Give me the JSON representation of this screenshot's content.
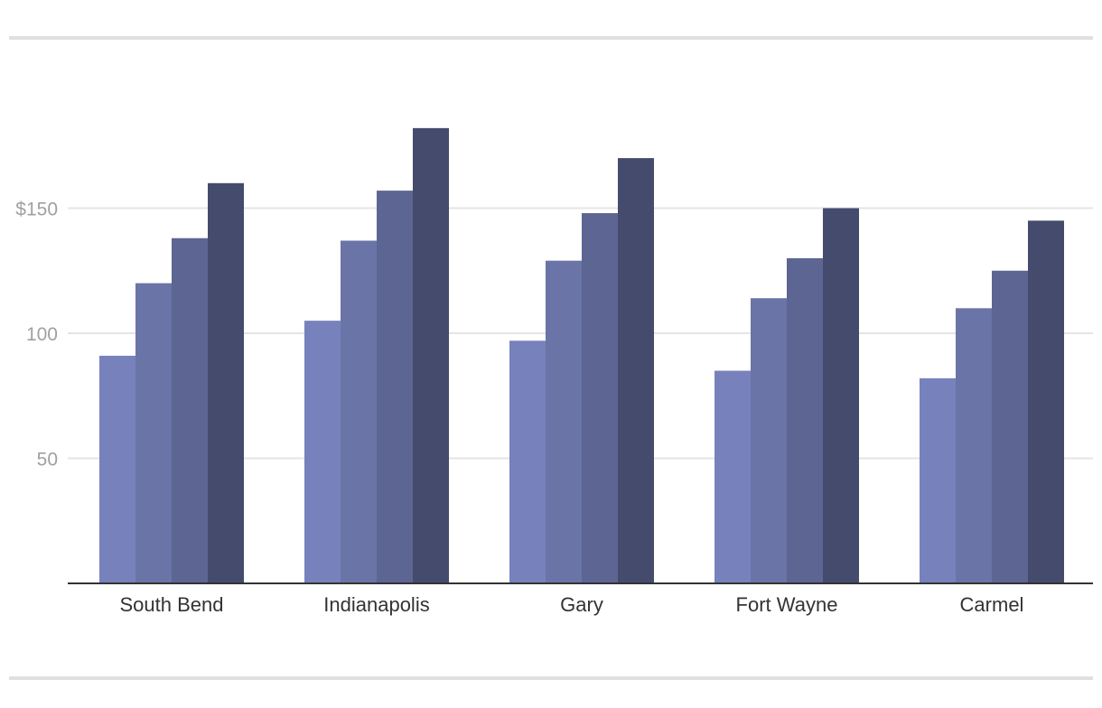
{
  "chart_data": {
    "type": "bar",
    "categories": [
      "South Bend",
      "Indianapolis",
      "Gary",
      "Fort Wayne",
      "Carmel"
    ],
    "series": [
      {
        "values": [
          91,
          105,
          97,
          85,
          82
        ],
        "color": "#7782bc"
      },
      {
        "values": [
          120,
          137,
          129,
          114,
          110
        ],
        "color": "#6a74a7"
      },
      {
        "values": [
          138,
          157,
          148,
          130,
          125
        ],
        "color": "#5d6592"
      },
      {
        "values": [
          160,
          182,
          170,
          150,
          145
        ],
        "color": "#444b6c"
      }
    ],
    "y_ticks": [
      {
        "value": 50,
        "label": "50"
      },
      {
        "value": 100,
        "label": "100"
      },
      {
        "value": 150,
        "label": "$150"
      }
    ],
    "ylim": [
      0,
      182
    ],
    "grid": true,
    "legend": "none"
  }
}
